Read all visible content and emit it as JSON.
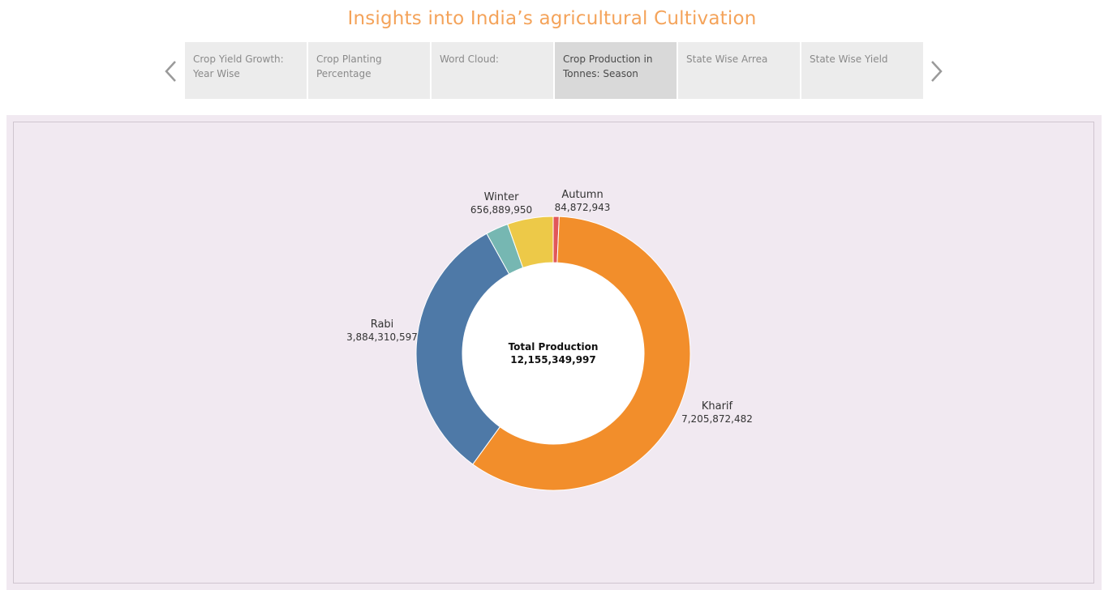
{
  "header": {
    "title": "Insights into India’s  agricultural Cultivation"
  },
  "nav": {
    "prev_icon": "chevron-left-icon",
    "next_icon": "chevron-right-icon",
    "tabs": [
      {
        "line1": "Crop Yield Growth:",
        "line2": "Year Wise",
        "active": false
      },
      {
        "line1": "Crop Planting",
        "line2": "Percentage",
        "active": false
      },
      {
        "line1": "Word Cloud:",
        "line2": "",
        "active": false
      },
      {
        "line1": "Crop Production in",
        "line2": "Tonnes: Season",
        "active": true
      },
      {
        "line1": "State Wise Arrea",
        "line2": "",
        "active": false
      },
      {
        "line1": "State Wise Yield",
        "line2": "",
        "active": false
      }
    ]
  },
  "chart_data": {
    "type": "pie",
    "donut": true,
    "center_label": "Total Production",
    "center_value": "12,155,349,997",
    "total": 12155349997,
    "slices": [
      {
        "label": "Autumn",
        "value": 84872943,
        "value_label": "84,872,943",
        "color": "#e15759"
      },
      {
        "label": "Kharif",
        "value": 7205872482,
        "value_label": "7,205,872,482",
        "color": "#f28e2b"
      },
      {
        "label": "Rabi",
        "value": 3884310597,
        "value_label": "3,884,310,597",
        "color": "#4e79a7"
      },
      {
        "label": "",
        "value": 323404025,
        "value_label": "",
        "color": "#76b7b2"
      },
      {
        "label": "Winter",
        "value": 656889950,
        "value_label": "656,889,950",
        "color": "#edc948"
      }
    ]
  },
  "colors": {
    "title": "#f4a35a",
    "panel_background": "#f1e9f1",
    "tab_background": "#ececec",
    "tab_active_background": "#d9d9d9"
  }
}
